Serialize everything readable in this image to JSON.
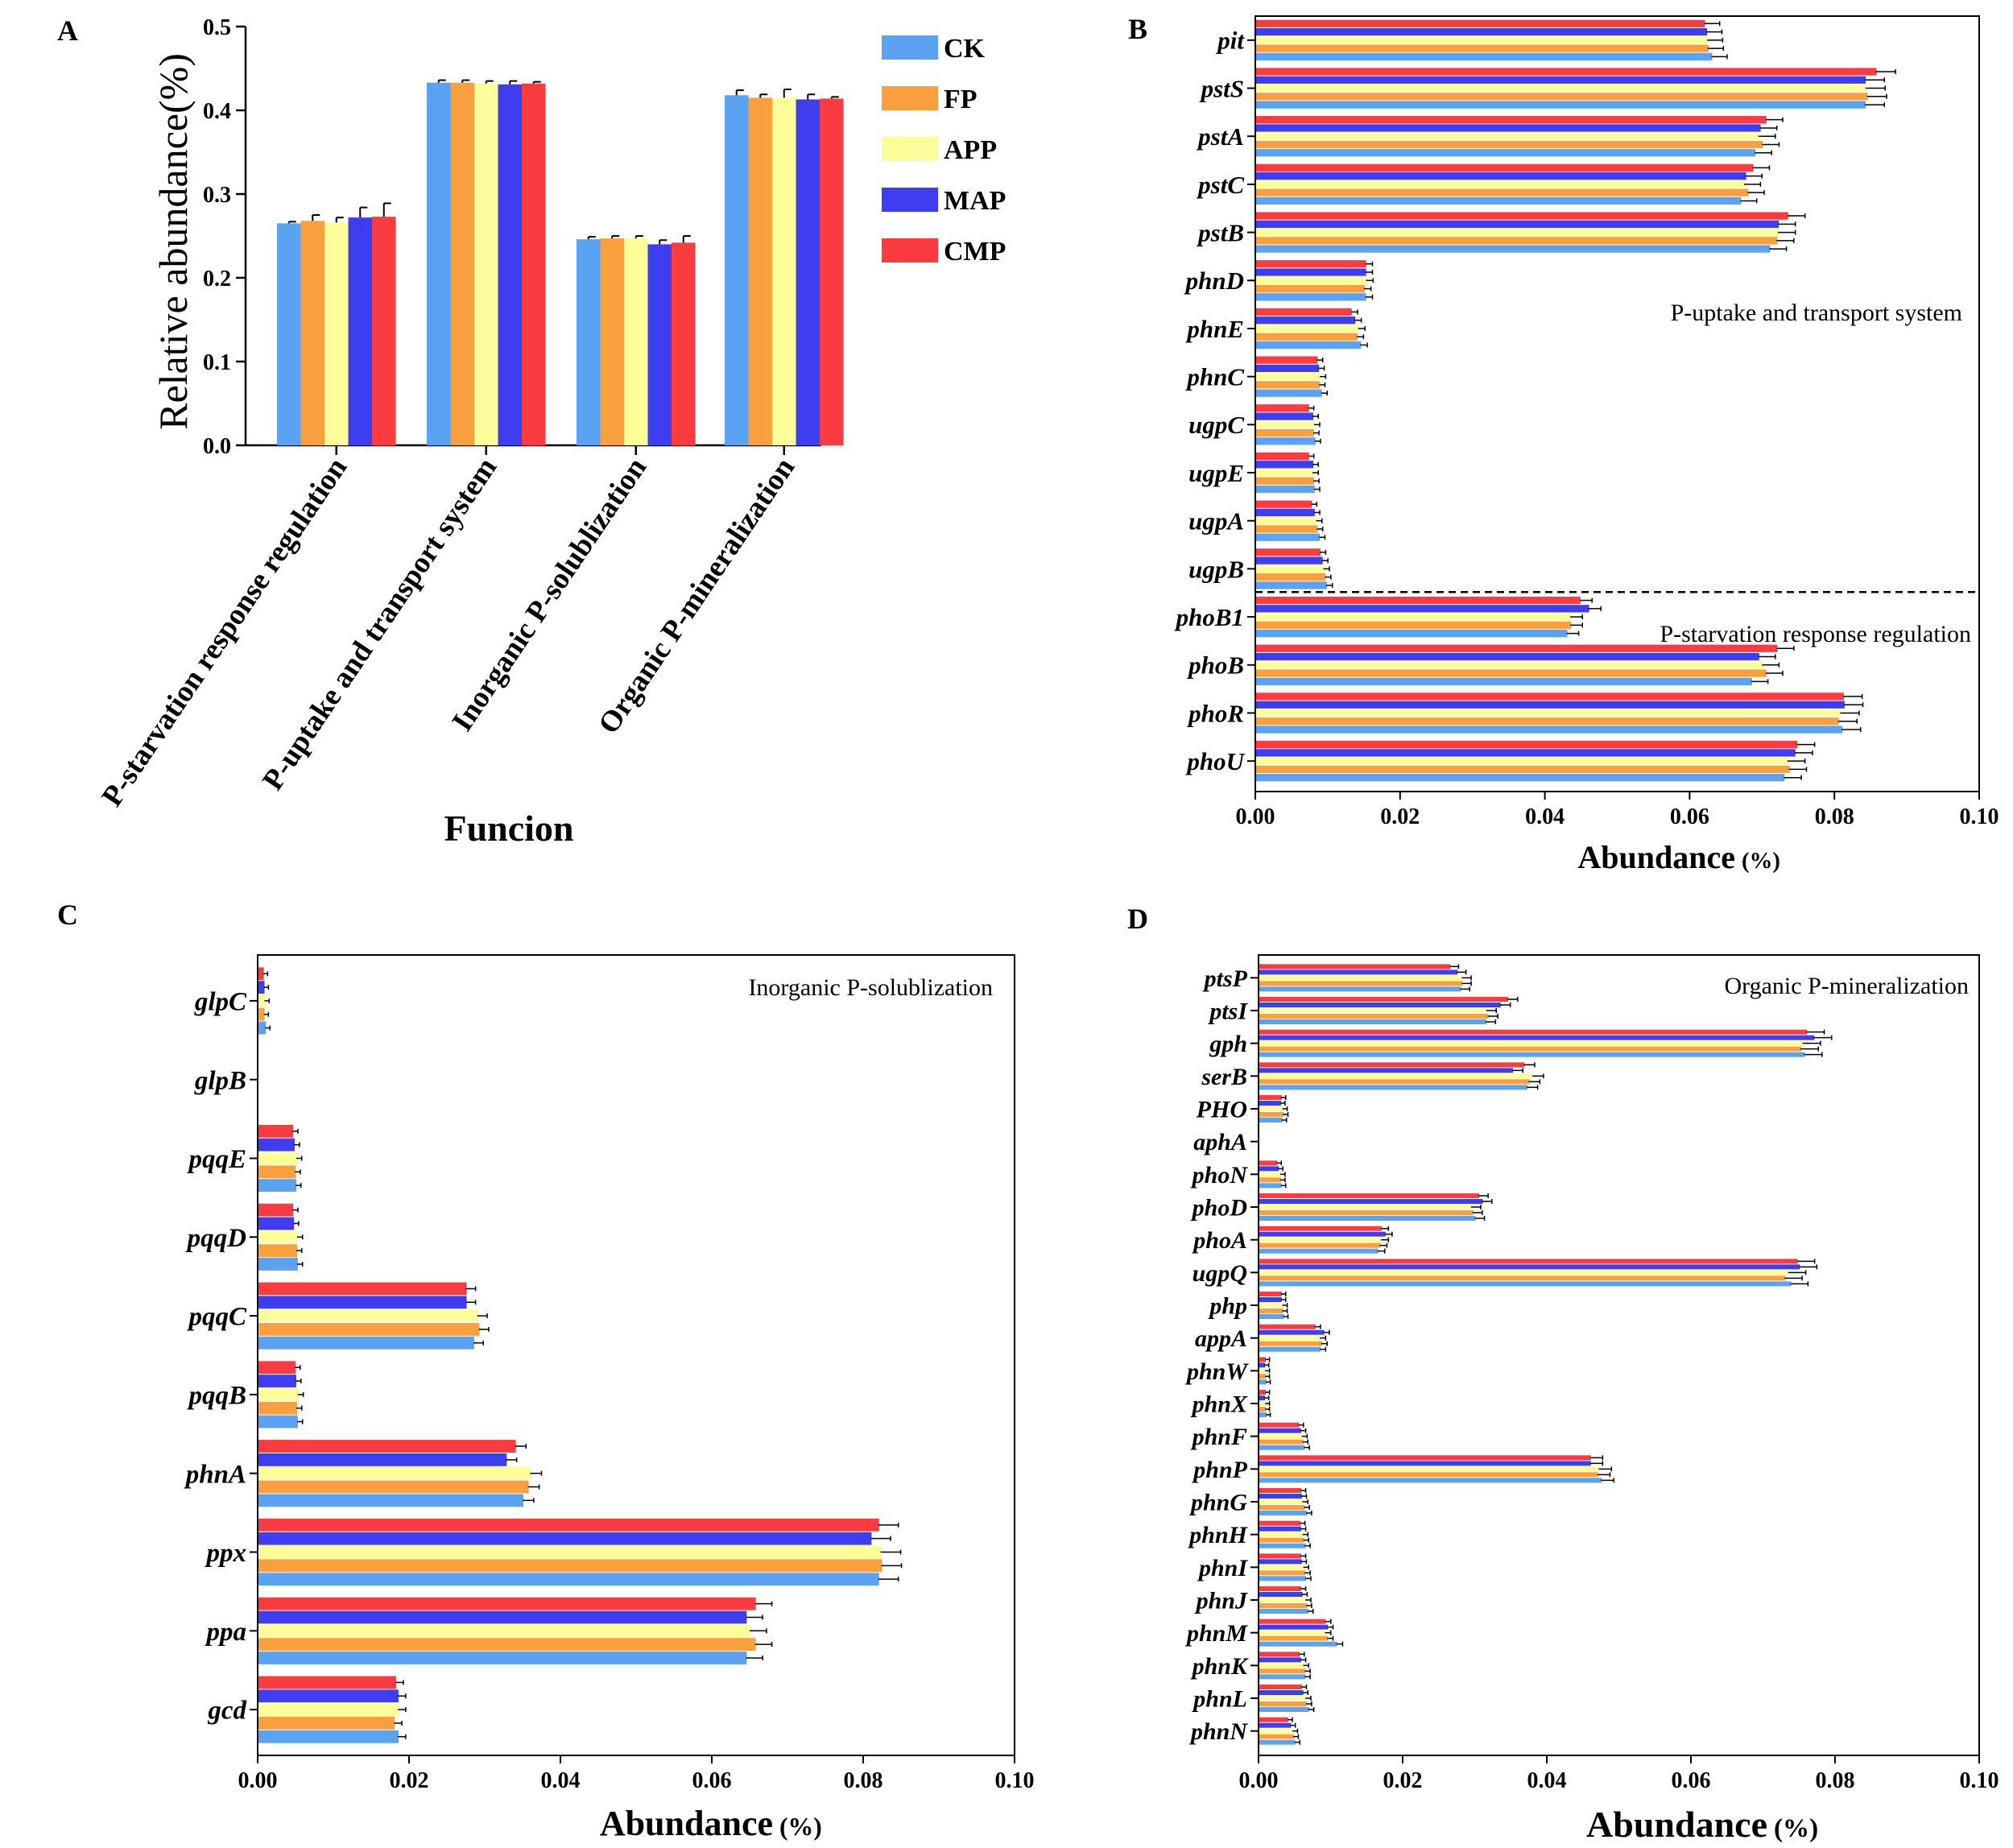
{
  "palette": {
    "CK": "#5ba3f2",
    "FP": "#fa9f3e",
    "APP": "#fdfd9a",
    "MAP": "#3e3ef0",
    "CMP": "#fa3c41"
  },
  "chart_data": [
    {
      "id": "A",
      "type": "bar",
      "panel_letter": "A",
      "ylabel": "Relative abundance(%)",
      "xlabel": "Funcion",
      "ylim": [
        0,
        0.5
      ],
      "yticks": [
        "0.0",
        "0.1",
        "0.2",
        "0.3",
        "0.4",
        "0.5"
      ],
      "legend_position": "top-right",
      "categories": [
        "P-starvation response regulation",
        "P-uptake and transport system",
        "Inorganic P-solublization",
        "Organic P-mineralization"
      ],
      "series": [
        {
          "name": "CK",
          "values": [
            0.265,
            0.433,
            0.246,
            0.418
          ],
          "errors": [
            0.002,
            0.003,
            0.003,
            0.006
          ]
        },
        {
          "name": "FP",
          "values": [
            0.268,
            0.433,
            0.247,
            0.415
          ],
          "errors": [
            0.007,
            0.003,
            0.003,
            0.004
          ]
        },
        {
          "name": "APP",
          "values": [
            0.266,
            0.432,
            0.247,
            0.415
          ],
          "errors": [
            0.006,
            0.003,
            0.003,
            0.01
          ]
        },
        {
          "name": "MAP",
          "values": [
            0.272,
            0.431,
            0.24,
            0.413
          ],
          "errors": [
            0.012,
            0.004,
            0.005,
            0.006
          ]
        },
        {
          "name": "CMP",
          "values": [
            0.273,
            0.432,
            0.242,
            0.414
          ],
          "errors": [
            0.016,
            0.002,
            0.008,
            0.002
          ]
        }
      ]
    },
    {
      "id": "B",
      "type": "bar",
      "orientation": "horizontal",
      "panel_letter": "B",
      "xlabel": "Abundance",
      "xlabel_unit": "(%)",
      "xlim": [
        0,
        0.1
      ],
      "xticks": [
        "0.00",
        "0.02",
        "0.04",
        "0.06",
        "0.08",
        "0.10"
      ],
      "annotations": [
        "P-uptake and transport system",
        "P-starvation response regulation"
      ],
      "categories": [
        "pit",
        "pstS",
        "pstA",
        "pstC",
        "pstB",
        "phnD",
        "phnE",
        "phnC",
        "ugpC",
        "ugpE",
        "ugpA",
        "ugpB",
        "phoB1",
        "phoB",
        "phoR",
        "phoU"
      ],
      "series": [
        {
          "name": "CK",
          "values": [
            0.063,
            0.0842,
            0.069,
            0.067,
            0.071,
            0.0152,
            0.0145,
            0.0091,
            0.0082,
            0.0081,
            0.0088,
            0.0098,
            0.043,
            0.0685,
            0.081,
            0.073
          ]
        },
        {
          "name": "FP",
          "values": [
            0.0625,
            0.0845,
            0.07,
            0.068,
            0.072,
            0.015,
            0.014,
            0.0088,
            0.008,
            0.008,
            0.0085,
            0.0096,
            0.0435,
            0.0705,
            0.0805,
            0.0737
          ]
        },
        {
          "name": "APP",
          "values": [
            0.0624,
            0.0843,
            0.0695,
            0.0675,
            0.0722,
            0.0153,
            0.0142,
            0.0089,
            0.0081,
            0.0079,
            0.0084,
            0.0094,
            0.0435,
            0.07,
            0.0808,
            0.0735
          ]
        },
        {
          "name": "MAP",
          "values": [
            0.0623,
            0.0842,
            0.0697,
            0.0677,
            0.0722,
            0.0152,
            0.0137,
            0.0087,
            0.0079,
            0.0079,
            0.0081,
            0.0092,
            0.046,
            0.0695,
            0.0813,
            0.0745
          ]
        },
        {
          "name": "CMP",
          "values": [
            0.062,
            0.0857,
            0.0705,
            0.0687,
            0.0735,
            0.0152,
            0.0132,
            0.0085,
            0.0073,
            0.0073,
            0.0077,
            0.0089,
            0.0448,
            0.072,
            0.0812,
            0.0748
          ]
        }
      ]
    },
    {
      "id": "C",
      "type": "bar",
      "orientation": "horizontal",
      "panel_letter": "C",
      "xlabel": "Abundance",
      "xlabel_unit": "(%)",
      "xlim": [
        0,
        0.1
      ],
      "xticks": [
        "0.00",
        "0.02",
        "0.04",
        "0.06",
        "0.08",
        "0.10"
      ],
      "annotations": [
        "Inorganic P-solublization"
      ],
      "categories": [
        "glpC",
        "glpB",
        "pqqE",
        "pqqD",
        "pqqC",
        "pqqB",
        "phnA",
        "ppx",
        "ppa",
        "gcd"
      ],
      "series": [
        {
          "name": "CK",
          "values": [
            0.001,
            0.0,
            0.005,
            0.0052,
            0.0285,
            0.0052,
            0.035,
            0.082,
            0.0645,
            0.0185
          ]
        },
        {
          "name": "FP",
          "values": [
            0.0008,
            0.0,
            0.0049,
            0.0051,
            0.0292,
            0.0051,
            0.0357,
            0.0824,
            0.0657,
            0.018
          ]
        },
        {
          "name": "APP",
          "values": [
            0.0009,
            0.0,
            0.0051,
            0.0052,
            0.029,
            0.0053,
            0.036,
            0.0823,
            0.065,
            0.0185
          ]
        },
        {
          "name": "MAP",
          "values": [
            0.0008,
            0.0,
            0.0048,
            0.0047,
            0.0275,
            0.005,
            0.0328,
            0.081,
            0.0645,
            0.0185
          ]
        },
        {
          "name": "CMP",
          "values": [
            0.0007,
            0.0,
            0.0046,
            0.0046,
            0.0275,
            0.0049,
            0.034,
            0.082,
            0.0657,
            0.0182
          ]
        }
      ]
    },
    {
      "id": "D",
      "type": "bar",
      "orientation": "horizontal",
      "panel_letter": "D",
      "xlabel": "Abundance",
      "xlabel_unit": "(%)",
      "xlim": [
        0,
        0.1
      ],
      "xticks": [
        "0.00",
        "0.02",
        "0.04",
        "0.06",
        "0.08",
        "0.10"
      ],
      "annotations": [
        "Organic P-mineralization"
      ],
      "categories": [
        "ptsP",
        "ptsI",
        "gph",
        "serB",
        "PHO",
        "aphA",
        "phoN",
        "phoD",
        "phoA",
        "ugpQ",
        "php",
        "appA",
        "phnW",
        "phnX",
        "phnF",
        "phnP",
        "phnG",
        "phnH",
        "phnI",
        "phnJ",
        "phnM",
        "phnK",
        "phnL",
        "phnN"
      ],
      "series": [
        {
          "name": "CK",
          "values": [
            0.028,
            0.0315,
            0.0757,
            0.0372,
            0.0032,
            0.0,
            0.0031,
            0.03,
            0.0165,
            0.0738,
            0.0034,
            0.0085,
            0.001,
            0.001,
            0.0063,
            0.0475,
            0.0066,
            0.0064,
            0.0065,
            0.0068,
            0.0108,
            0.0064,
            0.0069,
            0.005
          ]
        },
        {
          "name": "FP",
          "values": [
            0.0282,
            0.0318,
            0.0752,
            0.0375,
            0.0034,
            0.0,
            0.003,
            0.0297,
            0.0168,
            0.073,
            0.0033,
            0.0087,
            0.0009,
            0.0009,
            0.0061,
            0.047,
            0.0063,
            0.0062,
            0.0064,
            0.0066,
            0.0095,
            0.0064,
            0.0066,
            0.0048
          ]
        },
        {
          "name": "APP",
          "values": [
            0.0282,
            0.0316,
            0.0755,
            0.038,
            0.0033,
            0.0,
            0.003,
            0.0295,
            0.017,
            0.0735,
            0.0033,
            0.0085,
            0.0009,
            0.0009,
            0.006,
            0.0472,
            0.0061,
            0.0061,
            0.0062,
            0.0065,
            0.0092,
            0.0062,
            0.0065,
            0.0047
          ]
        },
        {
          "name": "MAP",
          "values": [
            0.0275,
            0.0335,
            0.077,
            0.0352,
            0.003,
            0.0,
            0.0027,
            0.031,
            0.0175,
            0.075,
            0.0031,
            0.009,
            0.0008,
            0.0008,
            0.0058,
            0.046,
            0.0059,
            0.0058,
            0.0059,
            0.006,
            0.0095,
            0.0058,
            0.0061,
            0.0044
          ]
        },
        {
          "name": "CMP",
          "values": [
            0.0265,
            0.0345,
            0.076,
            0.0368,
            0.0031,
            0.0,
            0.0025,
            0.0305,
            0.017,
            0.0747,
            0.0031,
            0.0078,
            0.0009,
            0.0009,
            0.0055,
            0.046,
            0.0058,
            0.0057,
            0.0058,
            0.0058,
            0.0092,
            0.0056,
            0.0059,
            0.004
          ]
        }
      ]
    }
  ]
}
